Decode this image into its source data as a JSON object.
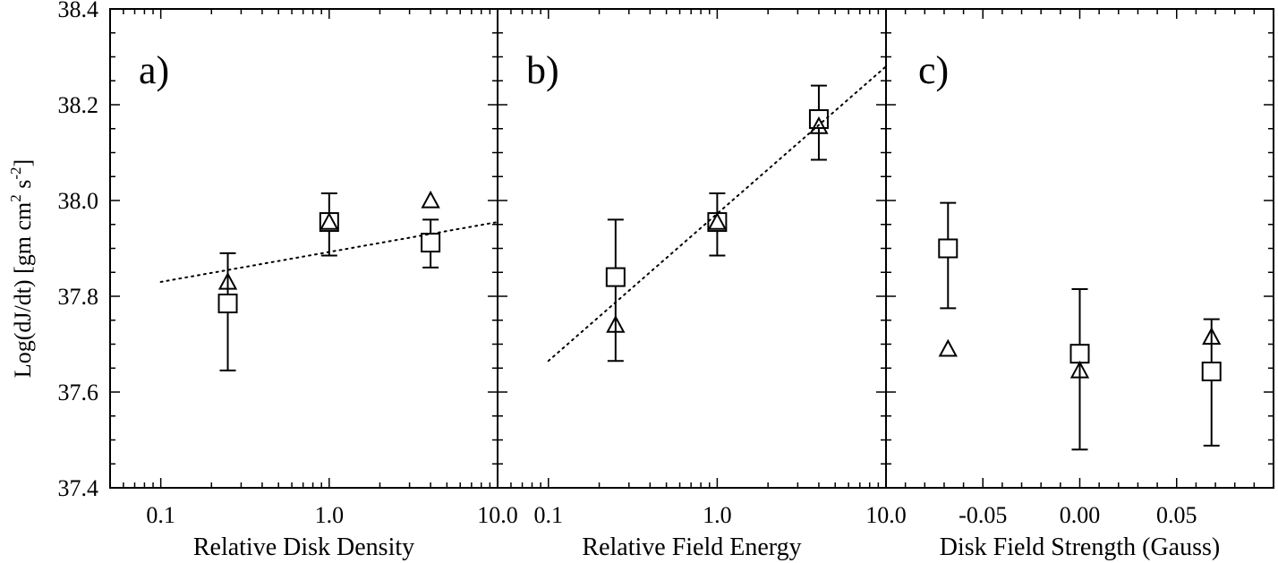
{
  "chart_data": {
    "type": "scatter",
    "ylabel": {
      "prefix": "Log(dJ/dt)   [gm cm",
      "exp1": "2",
      "mid": " s",
      "exp2": "-2",
      "suffix": "]"
    },
    "ylim": [
      37.4,
      38.4
    ],
    "yticks": [
      37.4,
      37.6,
      37.8,
      38.0,
      38.2,
      38.4
    ],
    "ytick_labels": [
      "37.4",
      "37.6",
      "37.8",
      "38.0",
      "38.2",
      "38.4"
    ],
    "panels": [
      {
        "id": "a",
        "label": "a)",
        "xlabel": "Relative Disk Density",
        "xscale": "log",
        "xlim": [
          0.05,
          10
        ],
        "xticks": [
          0.1,
          1.0,
          10.0
        ],
        "xtick_labels": [
          "0.1",
          "1.0",
          "10.0"
        ],
        "squares": [
          {
            "x": 0.25,
            "y": 37.785,
            "ylo": 37.645,
            "yhi": 37.89
          },
          {
            "x": 1.0,
            "y": 37.955,
            "ylo": 37.885,
            "yhi": 38.015
          },
          {
            "x": 4.0,
            "y": 37.912,
            "ylo": 37.86,
            "yhi": 37.96
          }
        ],
        "triangles": [
          {
            "x": 0.25,
            "y": 37.83
          },
          {
            "x": 1.0,
            "y": 37.955
          },
          {
            "x": 4.0,
            "y": 38.0
          }
        ],
        "fit_line": {
          "x": [
            0.1,
            10.0
          ],
          "y": [
            37.83,
            37.955
          ]
        }
      },
      {
        "id": "b",
        "label": "b)",
        "xlabel": "Relative Field Energy",
        "xscale": "log",
        "xlim": [
          0.05,
          10
        ],
        "xticks": [
          0.1,
          1.0,
          10.0
        ],
        "xtick_labels": [
          "0.1",
          "1.0",
          "10.0"
        ],
        "squares": [
          {
            "x": 0.25,
            "y": 37.84,
            "ylo": 37.665,
            "yhi": 37.96
          },
          {
            "x": 1.0,
            "y": 37.955,
            "ylo": 37.885,
            "yhi": 38.015
          },
          {
            "x": 4.0,
            "y": 38.17,
            "ylo": 38.085,
            "yhi": 38.24
          }
        ],
        "triangles": [
          {
            "x": 0.25,
            "y": 37.74
          },
          {
            "x": 1.0,
            "y": 37.955
          },
          {
            "x": 4.0,
            "y": 38.155
          }
        ],
        "fit_line": {
          "x": [
            0.1,
            10.0
          ],
          "y": [
            37.665,
            38.28
          ]
        }
      },
      {
        "id": "c",
        "label": "c)",
        "xlabel": "Disk Field Strength (Gauss)",
        "xscale": "linear",
        "xlim": [
          -0.1,
          0.1
        ],
        "xticks": [
          -0.05,
          0.0,
          0.05
        ],
        "xtick_labels": [
          "-0.05",
          "0.00",
          "0.05"
        ],
        "squares": [
          {
            "x": -0.068,
            "y": 37.9,
            "ylo": 37.775,
            "yhi": 37.995
          },
          {
            "x": 0.0,
            "y": 37.68,
            "ylo": 37.48,
            "yhi": 37.815
          },
          {
            "x": 0.068,
            "y": 37.643,
            "ylo": 37.488,
            "yhi": 37.752
          }
        ],
        "triangles": [
          {
            "x": -0.068,
            "y": 37.69
          },
          {
            "x": 0.0,
            "y": 37.645
          },
          {
            "x": 0.068,
            "y": 37.715
          }
        ],
        "fit_line": null
      }
    ]
  }
}
